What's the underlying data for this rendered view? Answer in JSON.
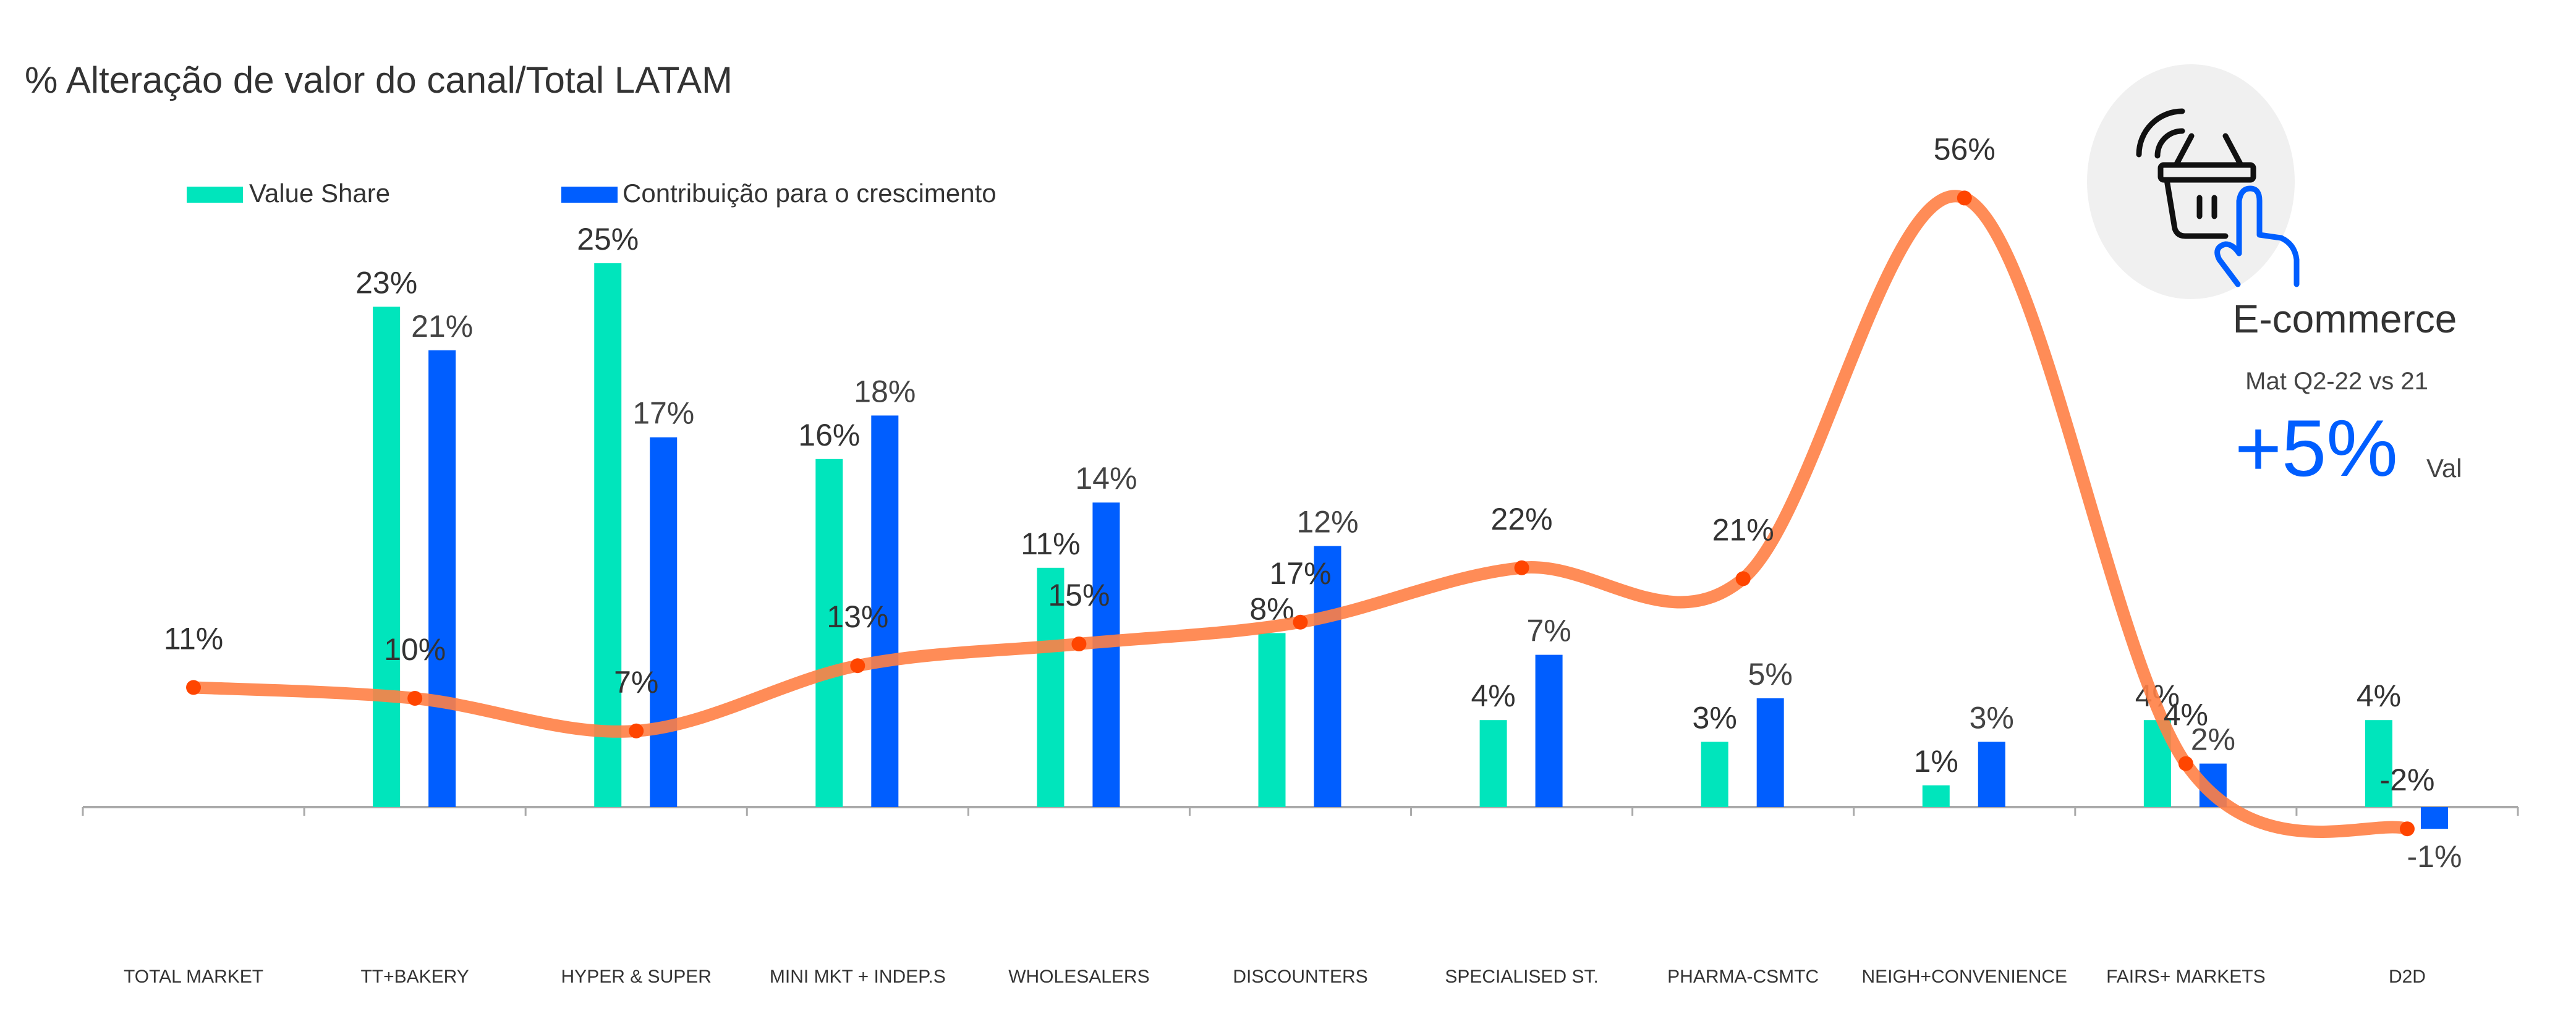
{
  "chart_data": {
    "type": "bar",
    "title": "% Alteração de valor do canal/Total LATAM",
    "categories": [
      "TOTAL MARKET",
      "TT+BAKERY",
      "HYPER & SUPER",
      "MINI MKT + INDEP.S",
      "WHOLESALERS",
      "DISCOUNTERS",
      "SPECIALISED ST.",
      "PHARMA-CSMTC",
      "NEIGH+CONVENIENCE",
      "FAIRS+ MARKETS",
      "D2D"
    ],
    "series": [
      {
        "name": "Value Share",
        "type": "bar",
        "color": "#00E5BC",
        "values": [
          null,
          23,
          25,
          16,
          11,
          8,
          4,
          3,
          1,
          4,
          4
        ]
      },
      {
        "name": "Contribuição para o crescimento",
        "type": "bar",
        "color": "#005EFF",
        "values": [
          null,
          21,
          17,
          18,
          14,
          12,
          7,
          5,
          3,
          2,
          -1
        ]
      },
      {
        "type": "line",
        "color": "#FF7F45",
        "marker_color": "#FF4500",
        "values": [
          11,
          10,
          7,
          13,
          15,
          17,
          22,
          21,
          56,
          4,
          -2
        ]
      }
    ],
    "value_format": "percent",
    "grid": false,
    "legend": "top-left",
    "xlabel": "",
    "ylabel": ""
  },
  "callout": {
    "icon": "shopping-basket-tap-icon",
    "title": "E-commerce",
    "period": "Mat Q2-22 vs 21",
    "value": "+5%",
    "unit": "Val",
    "value_color": "#005EFF",
    "circle_color": "#F0F0F0"
  }
}
